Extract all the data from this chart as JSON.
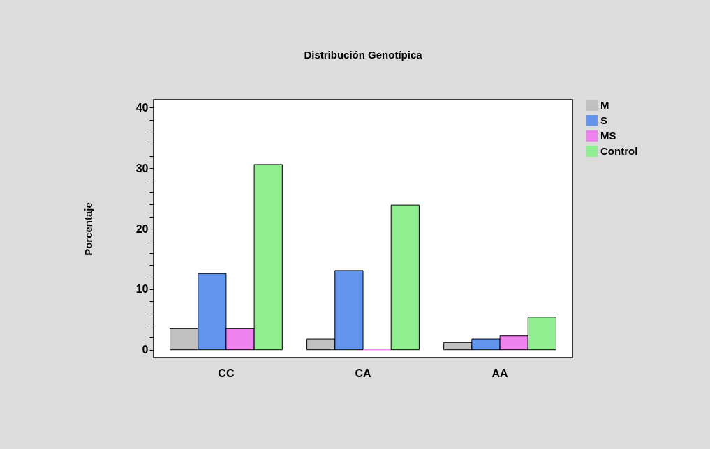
{
  "chart_data": {
    "type": "bar",
    "title": "Distribución Genotípica",
    "ylabel": "Porcentaje",
    "categories": [
      "CC",
      "CA",
      "AA"
    ],
    "series": [
      {
        "name": "M",
        "color": "#c0c0c0",
        "values": [
          3.5,
          1.8,
          1.2
        ]
      },
      {
        "name": "S",
        "color": "#6495ed",
        "values": [
          12.6,
          13.1,
          1.8
        ]
      },
      {
        "name": "MS",
        "color": "#ee82ee",
        "values": [
          3.5,
          0,
          2.3
        ]
      },
      {
        "name": "Control",
        "color": "#90ee90",
        "values": [
          30.6,
          23.9,
          5.4
        ]
      }
    ],
    "ylim": [
      -1.3,
      41.3
    ],
    "yticks": [
      0,
      {
        "value": 2,
        "label": null
      },
      {
        "value": 4,
        "label": null
      },
      {
        "value": 6,
        "label": null
      },
      {
        "value": 8,
        "label": null
      },
      10,
      {
        "value": 12,
        "label": null
      },
      {
        "value": 14,
        "label": null
      },
      {
        "value": 16,
        "label": null
      },
      {
        "value": 18,
        "label": null
      },
      20,
      {
        "value": 22,
        "label": null
      },
      {
        "value": 24,
        "label": null
      },
      {
        "value": 26,
        "label": null
      },
      {
        "value": 28,
        "label": null
      },
      30,
      {
        "value": 32,
        "label": null
      },
      {
        "value": 34,
        "label": null
      },
      {
        "value": 36,
        "label": null
      },
      {
        "value": 38,
        "label": null
      },
      40
    ],
    "grid": false,
    "legend": "top right"
  }
}
